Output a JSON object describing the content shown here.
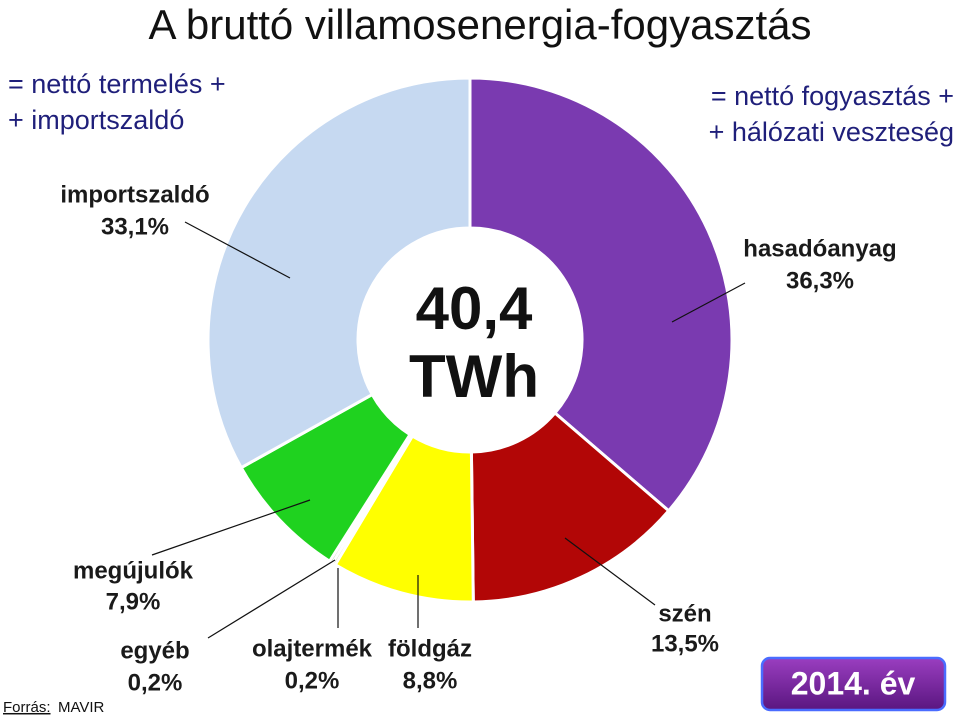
{
  "chart_data": {
    "type": "pie",
    "donut": true,
    "title": "A bruttó villamosenergia-fogyasztás",
    "annotations": [
      "= nettó termelés +",
      "+ importszaldó",
      "= nettó fogyasztás +",
      "+ hálózati veszteség"
    ],
    "center_text": [
      "40,4",
      "TWh"
    ],
    "categories": [
      "hasadóanyag",
      "szén",
      "földgáz",
      "olajtermék",
      "egyéb",
      "megújulók",
      "importszaldó"
    ],
    "values": [
      36.3,
      13.5,
      8.8,
      0.2,
      0.2,
      7.9,
      33.1
    ],
    "value_labels": [
      "36,3%",
      "13,5%",
      "8,8%",
      "0,2%",
      "0,2%",
      "7,9%",
      "33,1%"
    ],
    "colors": [
      "#7a3ab0",
      "#b20606",
      "#ffff00",
      "#8a8a6a",
      "#5a7a5a",
      "#1fd21f",
      "#c6d9f1"
    ],
    "source": {
      "label": "Forrás:",
      "text": "MAVIR"
    },
    "badge": "2014. év"
  }
}
